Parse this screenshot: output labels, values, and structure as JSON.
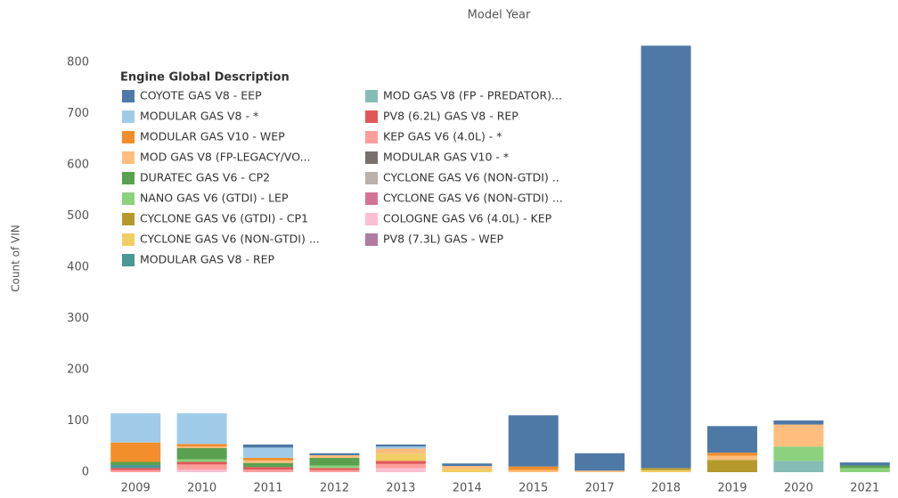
{
  "chart_data": {
    "type": "bar",
    "stacked": true,
    "title": "Model Year",
    "y_label": "Count of VIN",
    "legend_title": "Engine Global Description",
    "categories": [
      "2009",
      "2010",
      "2011",
      "2012",
      "2013",
      "2014",
      "2015",
      "2017",
      "2018",
      "2019",
      "2020",
      "2021"
    ],
    "ylim": [
      0,
      870
    ],
    "yticks": [
      0,
      100,
      200,
      300,
      400,
      500,
      600,
      700,
      800
    ],
    "grid": false,
    "series": [
      {
        "name": "COYOTE GAS V8 - EEP",
        "color": "#4e79a7",
        "values": [
          0,
          0,
          6,
          4,
          4,
          5,
          100,
          34,
          825,
          52,
          8,
          6
        ]
      },
      {
        "name": "MODULAR GAS V8 - *",
        "color": "#a0cbe8",
        "values": [
          57,
          60,
          20,
          0,
          4,
          0,
          0,
          0,
          0,
          0,
          0,
          0
        ]
      },
      {
        "name": "MODULAR GAS V10 - WEP",
        "color": "#f28e2b",
        "values": [
          38,
          5,
          5,
          0,
          0,
          0,
          7,
          0,
          0,
          6,
          0,
          0
        ]
      },
      {
        "name": "MOD GAS V8 (FP-LEGACY/VO...",
        "color": "#ffbe7d",
        "values": [
          0,
          3,
          5,
          5,
          10,
          6,
          4,
          3,
          0,
          8,
          43,
          0
        ]
      },
      {
        "name": "DURATEC GAS V6 - CP2",
        "color": "#59a14f",
        "values": [
          6,
          22,
          8,
          15,
          0,
          0,
          0,
          0,
          0,
          0,
          0,
          5
        ]
      },
      {
        "name": "NANO GAS V6 (GTDI) - LEP",
        "color": "#8cd17d",
        "values": [
          0,
          5,
          0,
          5,
          0,
          0,
          0,
          0,
          0,
          0,
          28,
          8
        ]
      },
      {
        "name": "CYCLONE GAS V6 (GTDI) - CP1",
        "color": "#b6992d",
        "values": [
          0,
          0,
          0,
          0,
          0,
          0,
          0,
          0,
          4,
          24,
          0,
          0
        ]
      },
      {
        "name": "CYCLONE GAS V6 (NON-GTDI) ...",
        "color": "#f1ce63",
        "values": [
          0,
          0,
          0,
          0,
          14,
          6,
          0,
          0,
          4,
          0,
          0,
          0
        ]
      },
      {
        "name": "MODULAR GAS V8 - REP",
        "color": "#499894",
        "values": [
          6,
          0,
          0,
          0,
          0,
          0,
          0,
          0,
          0,
          0,
          0,
          0
        ]
      },
      {
        "name": "MOD GAS V8 (FP - PREDATOR)...",
        "color": "#86bcb6",
        "values": [
          0,
          0,
          0,
          0,
          0,
          0,
          0,
          0,
          0,
          0,
          22,
          0
        ]
      },
      {
        "name": "PV8 (6.2L) GAS V8 - REP",
        "color": "#e15759",
        "values": [
          4,
          5,
          5,
          4,
          6,
          0,
          0,
          0,
          0,
          0,
          0,
          0
        ]
      },
      {
        "name": "KEP GAS V6 (4.0L) - *",
        "color": "#ff9d9a",
        "values": [
          4,
          10,
          5,
          4,
          8,
          0,
          0,
          0,
          0,
          0,
          0,
          0
        ]
      },
      {
        "name": "MODULAR GAS V10 - *",
        "color": "#79706e",
        "values": [
          0,
          0,
          0,
          0,
          0,
          0,
          0,
          0,
          0,
          0,
          0,
          0
        ]
      },
      {
        "name": "CYCLONE GAS V6 (NON-GTDI) ..",
        "color": "#bab0ac",
        "values": [
          0,
          0,
          0,
          0,
          0,
          0,
          0,
          0,
          0,
          0,
          0,
          0
        ]
      },
      {
        "name": "CYCLONE GAS V6 (NON-GTDI) ...",
        "color": "#d37295",
        "values": [
          0,
          0,
          0,
          0,
          0,
          0,
          0,
          0,
          0,
          0,
          0,
          0
        ]
      },
      {
        "name": "COLOGNE GAS V6 (4.0L) - KEP",
        "color": "#fabfd2",
        "values": [
          0,
          5,
          0,
          0,
          8,
          0,
          0,
          0,
          0,
          0,
          0,
          0
        ]
      },
      {
        "name": "PV8 (7.3L) GAS - WEP",
        "color": "#b07aa1",
        "values": [
          0,
          0,
          0,
          0,
          0,
          0,
          0,
          0,
          0,
          0,
          0,
          0
        ]
      }
    ]
  }
}
